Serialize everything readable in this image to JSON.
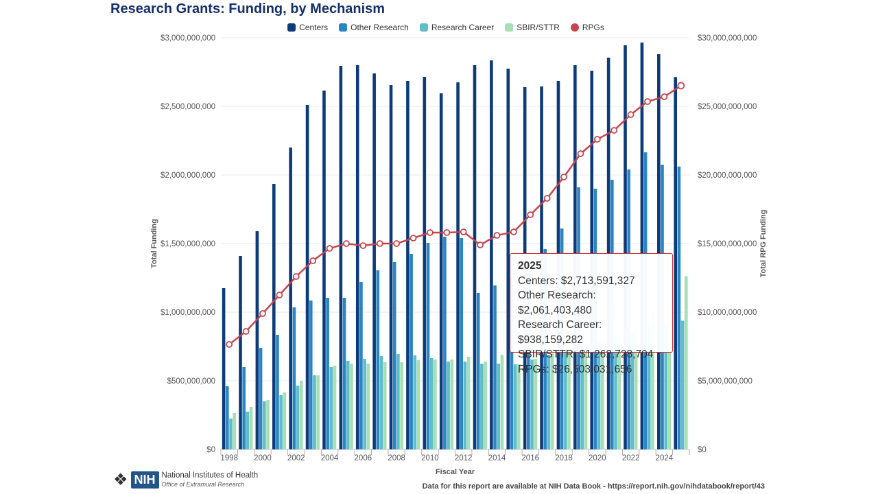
{
  "colors": {
    "centers": "#0d3b7a",
    "other": "#2a86c2",
    "career": "#5fbcc9",
    "sbir": "#a6dfb4",
    "rpg": "#c8444c"
  },
  "footer": {
    "org": "National Institutes of Health",
    "office": "Office of Extramural Research",
    "logo_text": "NIH",
    "source": "Data for this report are available at NIH Data Book - https://report.nih.gov/nihdatabook/report/43"
  },
  "tooltip": {
    "year": "2025",
    "lines": [
      "Centers: $2,713,591,327",
      "Other Research: $2,061,403,480",
      "Research Career: $938,159,282",
      "SBIR/STTR: $1,262,728,704",
      "RPGs: $26,503,031,656"
    ]
  },
  "chart_data": {
    "type": "bar",
    "title": "Research Grants: Funding, by Mechanism",
    "xlabel": "Fiscal Year",
    "ylabel": "Total Funding",
    "y2label": "Total RPG Funding",
    "ylim": [
      0,
      3000000000
    ],
    "y2lim": [
      0,
      30000000000
    ],
    "yticks": [
      "$0",
      "$500,000,000",
      "$1,000,000,000",
      "$1,500,000,000",
      "$2,000,000,000",
      "$2,500,000,000",
      "$3,000,000,000"
    ],
    "y2ticks": [
      "$0",
      "$5,000,000,000",
      "$10,000,000,000",
      "$15,000,000,000",
      "$20,000,000,000",
      "$25,000,000,000",
      "$30,000,000,000"
    ],
    "xticks": [
      "1998",
      "2000",
      "2002",
      "2004",
      "2006",
      "2008",
      "2010",
      "2012",
      "2014",
      "2016",
      "2018",
      "2020",
      "2022",
      "2024"
    ],
    "legend_position": "top",
    "grid": true,
    "categories": [
      1998,
      1999,
      2000,
      2001,
      2002,
      2003,
      2004,
      2005,
      2006,
      2007,
      2008,
      2009,
      2010,
      2011,
      2012,
      2013,
      2014,
      2015,
      2016,
      2017,
      2018,
      2019,
      2020,
      2021,
      2022,
      2023,
      2024,
      2025
    ],
    "series": [
      {
        "name": "Centers",
        "type": "bar",
        "axis": "left",
        "values": [
          1175000000,
          1410000000,
          1590000000,
          1935000000,
          2200000000,
          2510000000,
          2615000000,
          2795000000,
          2800000000,
          2740000000,
          2655000000,
          2685000000,
          2715000000,
          2595000000,
          2675000000,
          2800000000,
          2835000000,
          2775000000,
          2640000000,
          2645000000,
          2685000000,
          2800000000,
          2760000000,
          2855000000,
          2945000000,
          2965000000,
          2880000000,
          2713591327
        ]
      },
      {
        "name": "Other Research",
        "type": "bar",
        "axis": "left",
        "values": [
          460000000,
          600000000,
          740000000,
          835000000,
          1035000000,
          1085000000,
          1105000000,
          1105000000,
          1220000000,
          1305000000,
          1365000000,
          1425000000,
          1505000000,
          1550000000,
          1540000000,
          1140000000,
          1195000000,
          1250000000,
          1350000000,
          1460000000,
          1610000000,
          1910000000,
          1900000000,
          1965000000,
          2040000000,
          2165000000,
          2075000000,
          2061403480
        ]
      },
      {
        "name": "Research Career",
        "type": "bar",
        "axis": "left",
        "values": [
          225000000,
          275000000,
          350000000,
          395000000,
          465000000,
          540000000,
          600000000,
          645000000,
          660000000,
          680000000,
          695000000,
          685000000,
          665000000,
          640000000,
          640000000,
          625000000,
          625000000,
          620000000,
          655000000,
          690000000,
          720000000,
          750000000,
          780000000,
          820000000,
          860000000,
          900000000,
          920000000,
          938159282
        ]
      },
      {
        "name": "SBIR/STTR",
        "type": "bar",
        "axis": "left",
        "values": [
          265000000,
          310000000,
          360000000,
          415000000,
          500000000,
          540000000,
          610000000,
          625000000,
          625000000,
          635000000,
          635000000,
          650000000,
          655000000,
          655000000,
          675000000,
          640000000,
          690000000,
          620000000,
          660000000,
          700000000,
          720000000,
          750000000,
          780000000,
          820000000,
          900000000,
          1000000000,
          1050000000,
          1262728704
        ]
      },
      {
        "name": "RPGs",
        "type": "line",
        "axis": "right",
        "values": [
          7650000000,
          8600000000,
          9900000000,
          11250000000,
          12600000000,
          13750000000,
          14650000000,
          15000000000,
          14850000000,
          15000000000,
          15000000000,
          15400000000,
          15800000000,
          15800000000,
          15850000000,
          14900000000,
          15600000000,
          15850000000,
          17100000000,
          18300000000,
          19850000000,
          21550000000,
          22600000000,
          23250000000,
          24400000000,
          25350000000,
          25700000000,
          26503031656
        ]
      }
    ]
  }
}
